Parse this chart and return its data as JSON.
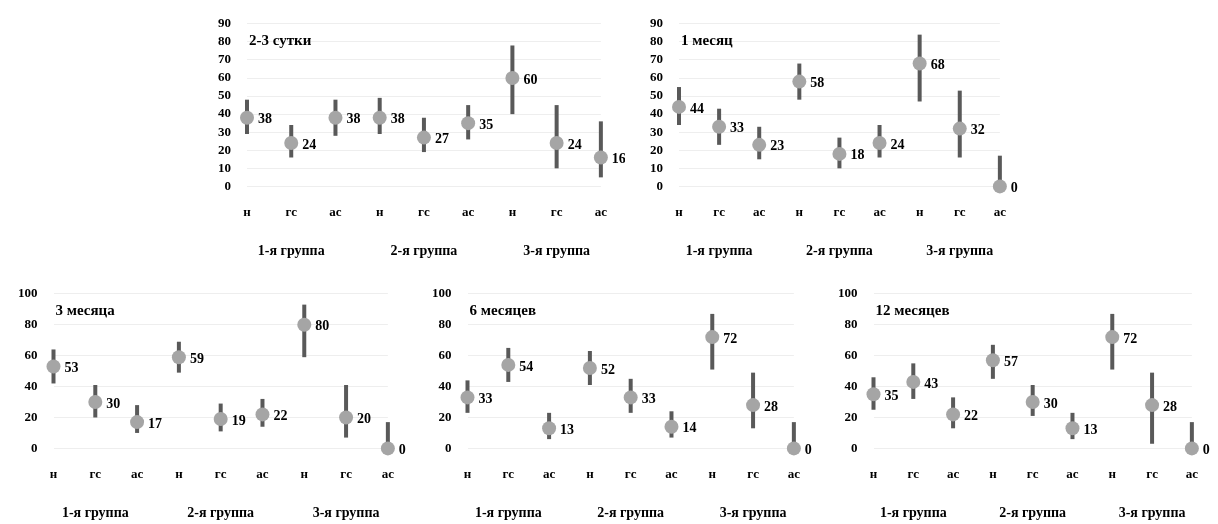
{
  "chart_data": [
    {
      "type": "scatter",
      "title": "2-3 сутки",
      "categories": [
        "н",
        "гс",
        "ас",
        "н",
        "гс",
        "ас",
        "н",
        "гс",
        "ас"
      ],
      "color": "#a5a5a5",
      "values": [
        38,
        24,
        38,
        38,
        27,
        35,
        60,
        24,
        16
      ],
      "errors": [
        [
          29,
          48
        ],
        [
          16,
          34
        ],
        [
          28,
          48
        ],
        [
          29,
          49
        ],
        [
          19,
          38
        ],
        [
          26,
          45
        ],
        [
          40,
          78
        ],
        [
          10,
          45
        ],
        [
          5,
          36
        ]
      ],
      "ylim": [
        0,
        90
      ],
      "yticks": [
        0,
        10,
        20,
        30,
        40,
        50,
        60,
        70,
        80,
        90
      ],
      "grid": "y",
      "marker": "circle",
      "data_labels": true,
      "annotations": [
        "1-я группа",
        "2-я группа",
        "3-я группа"
      ]
    },
    {
      "type": "scatter",
      "title": "1 месяц",
      "categories": [
        "н",
        "гс",
        "ас",
        "н",
        "гс",
        "ас",
        "н",
        "гс",
        "ас"
      ],
      "color": "#a5a5a5",
      "values": [
        44,
        33,
        23,
        58,
        18,
        24,
        68,
        32,
        0
      ],
      "errors": [
        [
          34,
          55
        ],
        [
          23,
          43
        ],
        [
          15,
          33
        ],
        [
          48,
          68
        ],
        [
          10,
          27
        ],
        [
          16,
          34
        ],
        [
          47,
          84
        ],
        [
          16,
          53
        ],
        [
          0,
          17
        ]
      ],
      "ylim": [
        0,
        90
      ],
      "yticks": [
        0,
        10,
        20,
        30,
        40,
        50,
        60,
        70,
        80,
        90
      ],
      "grid": "y",
      "marker": "circle",
      "data_labels": true,
      "annotations": [
        "1-я группа",
        "2-я группа",
        "3-я группа"
      ]
    },
    {
      "type": "scatter",
      "title": "3 месяца",
      "categories": [
        "н",
        "гс",
        "ас",
        "н",
        "гс",
        "ас",
        "н",
        "гс",
        "ас"
      ],
      "color": "#a5a5a5",
      "values": [
        53,
        30,
        17,
        59,
        19,
        22,
        80,
        20,
        0
      ],
      "errors": [
        [
          42,
          64
        ],
        [
          20,
          41
        ],
        [
          10,
          28
        ],
        [
          49,
          69
        ],
        [
          11,
          29
        ],
        [
          14,
          32
        ],
        [
          59,
          93
        ],
        [
          7,
          41
        ],
        [
          0,
          17
        ]
      ],
      "ylim": [
        0,
        100
      ],
      "yticks": [
        0,
        20,
        40,
        60,
        80,
        100
      ],
      "grid": "y",
      "marker": "circle",
      "data_labels": true,
      "annotations": [
        "1-я группа",
        "2-я группа",
        "3-я группа"
      ]
    },
    {
      "type": "scatter",
      "title": "6 месяцев",
      "categories": [
        "н",
        "гс",
        "ас",
        "н",
        "гс",
        "ас",
        "н",
        "гс",
        "ас"
      ],
      "color": "#a5a5a5",
      "values": [
        33,
        54,
        13,
        52,
        33,
        14,
        72,
        28,
        0
      ],
      "errors": [
        [
          23,
          44
        ],
        [
          43,
          65
        ],
        [
          6,
          23
        ],
        [
          41,
          63
        ],
        [
          23,
          45
        ],
        [
          7,
          24
        ],
        [
          51,
          87
        ],
        [
          13,
          49
        ],
        [
          0,
          17
        ]
      ],
      "ylim": [
        0,
        100
      ],
      "yticks": [
        0,
        20,
        40,
        60,
        80,
        100
      ],
      "grid": "y",
      "marker": "circle",
      "data_labels": true,
      "annotations": [
        "1-я группа",
        "2-я группа",
        "3-я группа"
      ]
    },
    {
      "type": "scatter",
      "title": "12 месяцев",
      "categories": [
        "н",
        "гс",
        "ас",
        "н",
        "гс",
        "ас",
        "н",
        "гс",
        "ас"
      ],
      "color": "#a5a5a5",
      "values": [
        35,
        43,
        22,
        57,
        30,
        13,
        72,
        28,
        0
      ],
      "errors": [
        [
          25,
          46
        ],
        [
          32,
          55
        ],
        [
          13,
          33
        ],
        [
          45,
          67
        ],
        [
          21,
          41
        ],
        [
          6,
          23
        ],
        [
          51,
          87
        ],
        [
          3,
          49
        ],
        [
          0,
          17
        ]
      ],
      "ylim": [
        0,
        100
      ],
      "yticks": [
        0,
        20,
        40,
        60,
        80,
        100
      ],
      "grid": "y",
      "marker": "circle",
      "data_labels": true,
      "annotations": [
        "1-я группа",
        "2-я группа",
        "3-я группа"
      ]
    }
  ]
}
